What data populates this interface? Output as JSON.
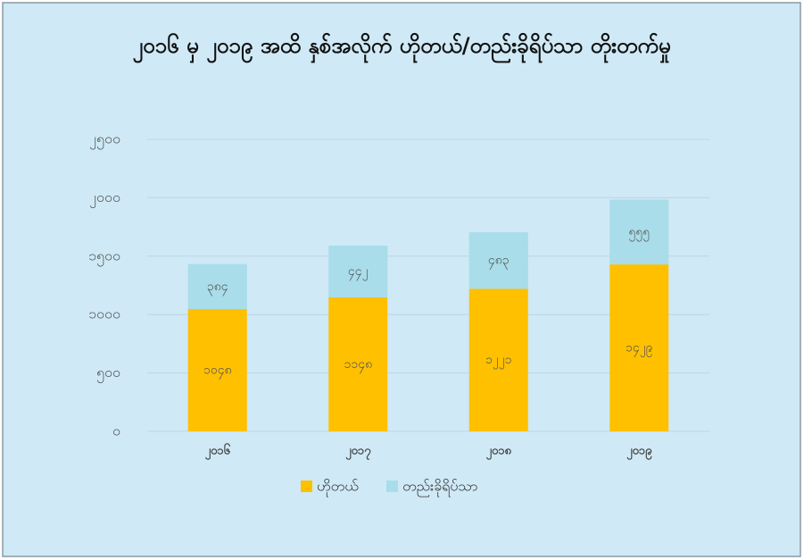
{
  "chart_data": {
    "type": "stacked_bar",
    "title": "၂၀၁၆ မှ ၂၀၁၉ အထိ နှစ်အလိုက် ဟိုတယ်/တည်းခိုရိပ်သာ တိုးတက်မှု",
    "categories": [
      "၂၀၁၆",
      "၂၀၁၇",
      "၂၀၁၈",
      "၂၀၁၉"
    ],
    "series": [
      {
        "name": "ဟိုတယ်",
        "color": "#ffc000",
        "values": [
          1048,
          1148,
          1221,
          1429
        ],
        "value_labels": [
          "၁၀၄၈",
          "၁၁၄၈",
          "၁၂၂၁",
          "၁၄၂၉"
        ]
      },
      {
        "name": "တည်းခိုရိပ်သာ",
        "color": "#a8dde9",
        "values": [
          384,
          442,
          483,
          555
        ],
        "value_labels": [
          "၃၈၄",
          "၄၄၂",
          "၄၈၃",
          "၅၅၅"
        ]
      }
    ],
    "ylim": [
      0,
      2500
    ],
    "yticks": [
      {
        "value": 0,
        "label": "၀"
      },
      {
        "value": 500,
        "label": "၅၀၀"
      },
      {
        "value": 1000,
        "label": "၁၀၀၀"
      },
      {
        "value": 1500,
        "label": "၁၅၀၀"
      },
      {
        "value": 2000,
        "label": "၂၀၀၀"
      },
      {
        "value": 2500,
        "label": "၂၅၀၀"
      }
    ],
    "grid": true,
    "legend": "bottom"
  }
}
